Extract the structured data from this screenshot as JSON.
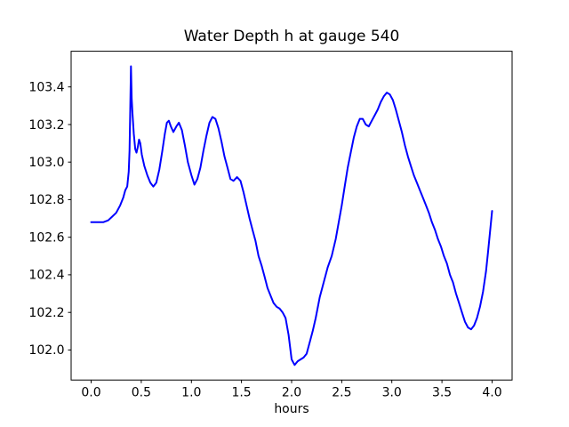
{
  "figure": {
    "background": "#ffffff"
  },
  "chart_data": {
    "type": "line",
    "title": "Water Depth h at gauge 540",
    "xlabel": "hours",
    "ylabel": "",
    "xlim": [
      -0.2,
      4.2
    ],
    "ylim": [
      101.84,
      103.59
    ],
    "xticks": [
      0.0,
      0.5,
      1.0,
      1.5,
      2.0,
      2.5,
      3.0,
      3.5,
      4.0
    ],
    "yticks": [
      102.0,
      102.2,
      102.4,
      102.6,
      102.8,
      103.0,
      103.2,
      103.4
    ],
    "grid": false,
    "legend": false,
    "line_color": "#0000ff",
    "axis_color": "#000000",
    "series": [
      {
        "name": "water-depth-at-gauge-540",
        "x": [
          0.0,
          0.06,
          0.12,
          0.17,
          0.21,
          0.25,
          0.29,
          0.32,
          0.34,
          0.36,
          0.375,
          0.383,
          0.39,
          0.397,
          0.404,
          0.412,
          0.425,
          0.44,
          0.452,
          0.465,
          0.478,
          0.49,
          0.505,
          0.53,
          0.56,
          0.59,
          0.62,
          0.65,
          0.68,
          0.71,
          0.735,
          0.755,
          0.775,
          0.795,
          0.82,
          0.85,
          0.875,
          0.905,
          0.935,
          0.965,
          1.0,
          1.03,
          1.06,
          1.09,
          1.12,
          1.15,
          1.18,
          1.21,
          1.24,
          1.27,
          1.3,
          1.33,
          1.36,
          1.39,
          1.42,
          1.455,
          1.49,
          1.52,
          1.55,
          1.58,
          1.61,
          1.64,
          1.67,
          1.7,
          1.73,
          1.76,
          1.79,
          1.82,
          1.85,
          1.88,
          1.91,
          1.94,
          1.97,
          2.0,
          2.03,
          2.06,
          2.09,
          2.12,
          2.15,
          2.18,
          2.21,
          2.24,
          2.28,
          2.32,
          2.36,
          2.4,
          2.44,
          2.47,
          2.5,
          2.53,
          2.56,
          2.59,
          2.62,
          2.65,
          2.68,
          2.71,
          2.74,
          2.77,
          2.8,
          2.83,
          2.86,
          2.89,
          2.92,
          2.95,
          2.98,
          3.01,
          3.04,
          3.07,
          3.1,
          3.13,
          3.16,
          3.19,
          3.22,
          3.25,
          3.28,
          3.31,
          3.34,
          3.37,
          3.4,
          3.43,
          3.46,
          3.49,
          3.52,
          3.55,
          3.58,
          3.61,
          3.64,
          3.67,
          3.7,
          3.73,
          3.76,
          3.79,
          3.82,
          3.85,
          3.88,
          3.91,
          3.94,
          3.96,
          3.98,
          4.0
        ],
        "y": [
          102.68,
          102.68,
          102.68,
          102.69,
          102.71,
          102.73,
          102.77,
          102.81,
          102.85,
          102.87,
          102.95,
          103.06,
          103.28,
          103.51,
          103.34,
          103.26,
          103.15,
          103.07,
          103.05,
          103.08,
          103.12,
          103.1,
          103.04,
          102.98,
          102.93,
          102.89,
          102.87,
          102.89,
          102.96,
          103.06,
          103.15,
          103.21,
          103.22,
          103.19,
          103.16,
          103.19,
          103.21,
          103.17,
          103.09,
          103.0,
          102.93,
          102.88,
          102.91,
          102.97,
          103.06,
          103.14,
          103.21,
          103.24,
          103.23,
          103.18,
          103.11,
          103.03,
          102.97,
          102.91,
          102.9,
          102.92,
          102.9,
          102.84,
          102.77,
          102.7,
          102.64,
          102.58,
          102.5,
          102.45,
          102.39,
          102.33,
          102.29,
          102.25,
          102.23,
          102.22,
          102.2,
          102.17,
          102.08,
          101.95,
          101.92,
          101.94,
          101.95,
          101.96,
          101.98,
          102.04,
          102.1,
          102.17,
          102.28,
          102.36,
          102.44,
          102.5,
          102.59,
          102.68,
          102.77,
          102.87,
          102.97,
          103.05,
          103.13,
          103.19,
          103.23,
          103.23,
          103.2,
          103.19,
          103.22,
          103.25,
          103.28,
          103.32,
          103.35,
          103.37,
          103.36,
          103.33,
          103.28,
          103.22,
          103.16,
          103.09,
          103.03,
          102.98,
          102.93,
          102.89,
          102.85,
          102.81,
          102.77,
          102.73,
          102.68,
          102.64,
          102.59,
          102.55,
          102.5,
          102.46,
          102.4,
          102.36,
          102.3,
          102.25,
          102.2,
          102.15,
          102.12,
          102.11,
          102.13,
          102.17,
          102.23,
          102.31,
          102.42,
          102.52,
          102.63,
          102.74
        ]
      }
    ]
  }
}
